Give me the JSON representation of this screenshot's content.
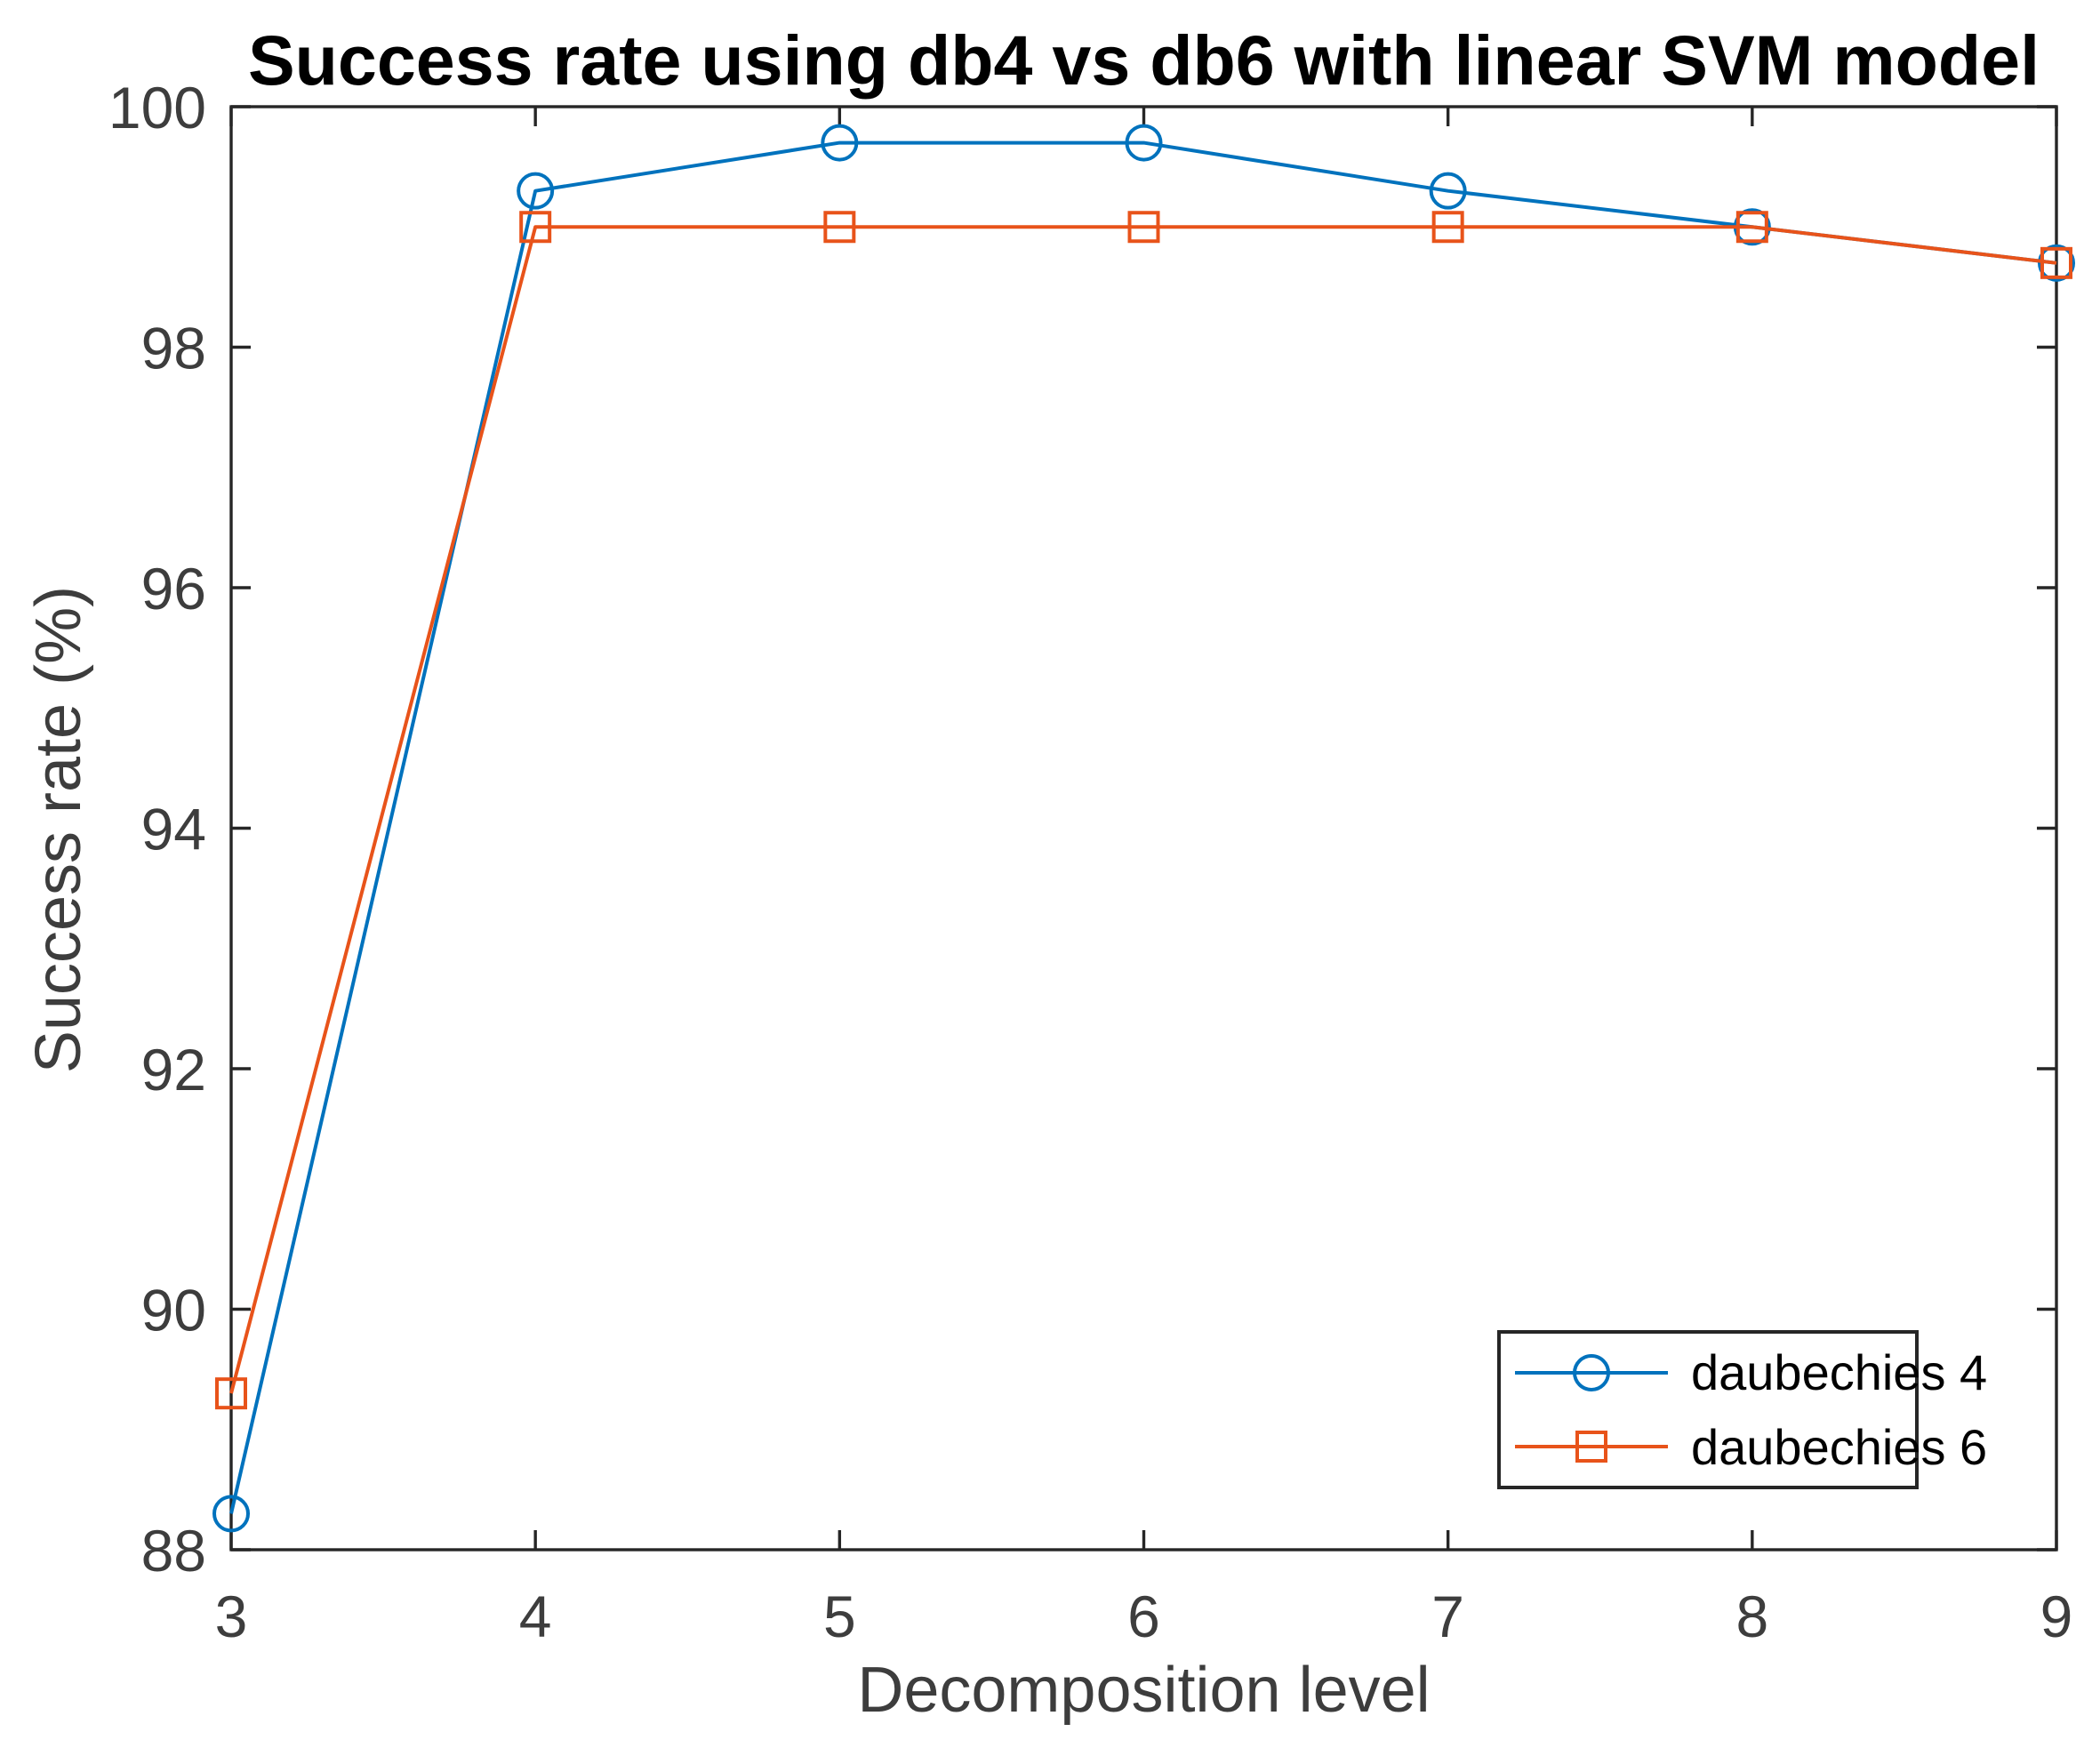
{
  "figure": {
    "title": "Success rate using db4 vs db6 with linear SVM model"
  },
  "chart_data": {
    "type": "line",
    "title": "Success rate using db4 vs db6 with linear SVM model",
    "xlabel": "Decomposition level",
    "ylabel": "Success rate (%)",
    "x": [
      3,
      4,
      5,
      6,
      7,
      8,
      9
    ],
    "series": [
      {
        "name": "daubechies 4",
        "marker": "circle",
        "color": "#0072BD",
        "values": [
          88.3,
          99.3,
          99.7,
          99.7,
          99.3,
          99.0,
          98.7
        ]
      },
      {
        "name": "daubechies 6",
        "marker": "square",
        "color": "#E8531A",
        "values": [
          89.3,
          99.0,
          99.0,
          99.0,
          99.0,
          99.0,
          98.7
        ]
      }
    ],
    "xlim": [
      3,
      9
    ],
    "ylim": [
      88,
      100
    ],
    "xticks": [
      "3",
      "4",
      "5",
      "6",
      "7",
      "8",
      "9"
    ],
    "yticks": [
      "88",
      "90",
      "92",
      "94",
      "96",
      "98",
      "100"
    ],
    "grid": false,
    "legend_position": "southeast",
    "axis_color": "#262626",
    "tick_label_color": "#3d3d3d"
  }
}
